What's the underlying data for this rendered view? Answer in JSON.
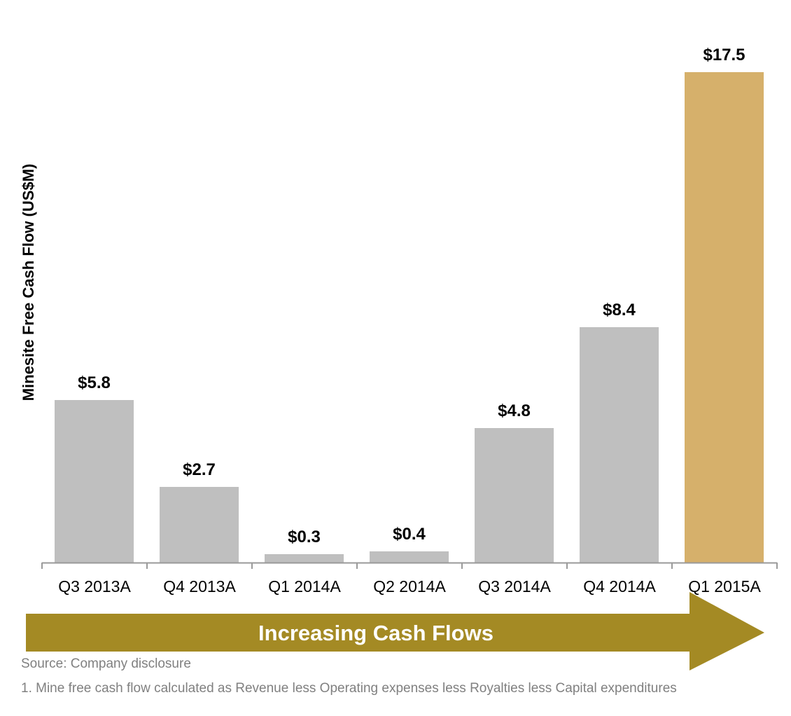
{
  "chart_data": {
    "type": "bar",
    "title": "",
    "xlabel": "",
    "ylabel": "Minesite Free Cash Flow (US$M)",
    "categories": [
      "Q3 2013A",
      "Q4 2013A",
      "Q1 2014A",
      "Q2 2014A",
      "Q3 2014A",
      "Q4 2014A",
      "Q1 2015A"
    ],
    "values": [
      5.8,
      2.7,
      0.3,
      0.4,
      4.8,
      8.4,
      17.5
    ],
    "data_labels": [
      "$5.8",
      "$2.7",
      "$0.3",
      "$0.4",
      "$4.8",
      "$8.4",
      "$17.5"
    ],
    "bar_colors": [
      "#bfbfbf",
      "#bfbfbf",
      "#bfbfbf",
      "#bfbfbf",
      "#bfbfbf",
      "#bfbfbf",
      "#d6b06b"
    ],
    "ylim": [
      0,
      17.5
    ],
    "grid": false,
    "legend": "none"
  },
  "banner": {
    "text": "Increasing Cash Flows",
    "color": "#a48a24"
  },
  "notes": {
    "source": "Source: Company disclosure",
    "footnote": "1. Mine free cash flow calculated as Revenue less Operating expenses less Royalties less Capital expenditures"
  }
}
